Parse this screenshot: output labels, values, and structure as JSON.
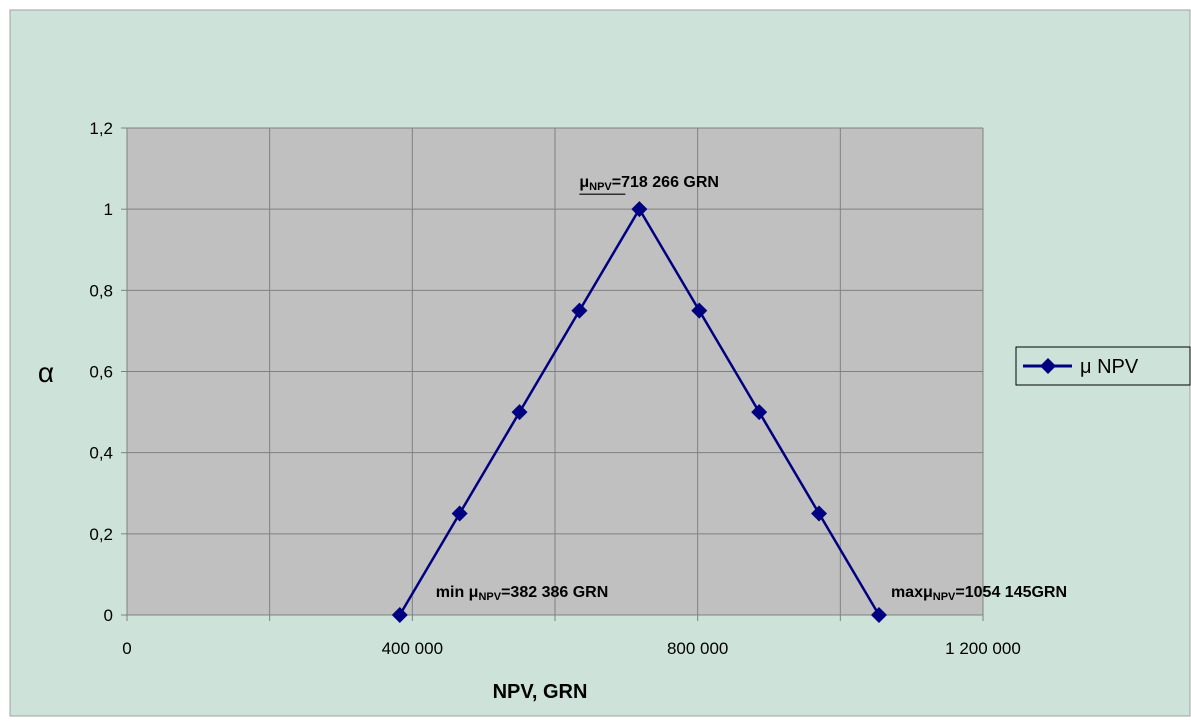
{
  "chart_data": {
    "type": "line",
    "x": [
      382386,
      466326,
      550266,
      634266,
      718266,
      802266,
      886206,
      970146,
      1054145
    ],
    "series": [
      {
        "name": "μ NPV",
        "values": [
          0,
          0.25,
          0.5,
          0.75,
          1,
          0.75,
          0.5,
          0.25,
          0
        ],
        "color": "#000080",
        "marker": "diamond"
      }
    ],
    "xlabel": "NPV, GRN",
    "ylabel": "α",
    "xlim": [
      0,
      1200000
    ],
    "ylim": [
      0,
      1.2
    ],
    "x_ticks": [
      0,
      400000,
      800000,
      1200000
    ],
    "x_tick_labels": [
      "0",
      "400 000",
      "800 000",
      "1 200 000"
    ],
    "x_gridlines": [
      0,
      200000,
      400000,
      600000,
      800000,
      1000000,
      1200000
    ],
    "y_ticks": [
      0,
      0.2,
      0.4,
      0.6,
      0.8,
      1,
      1.2
    ],
    "y_tick_labels": [
      "0",
      "0,2",
      "0,4",
      "0,6",
      "0,8",
      "1",
      "1,2"
    ],
    "grid": true,
    "legend": "right",
    "annotations": {
      "peak": {
        "prefix": "",
        "mu": "μ",
        "sub": "NPV",
        "suffix": "=718 266 GRN",
        "at_x": 718266,
        "at_y": 1
      },
      "min": {
        "prefix": "min ",
        "mu": "μ",
        "sub": "NPV",
        "suffix": "=382 386 GRN",
        "at_x": 382386,
        "at_y": 0
      },
      "max": {
        "prefix": "max",
        "mu": "μ",
        "sub": "NPV",
        "suffix": "=1054 145GRN",
        "at_x": 1054145,
        "at_y": 0
      }
    },
    "colors": {
      "chart_area": "#cde3da",
      "plot_area": "#c0c0c0",
      "grid": "#808080",
      "axis": "#808080",
      "line": "#000080"
    }
  }
}
